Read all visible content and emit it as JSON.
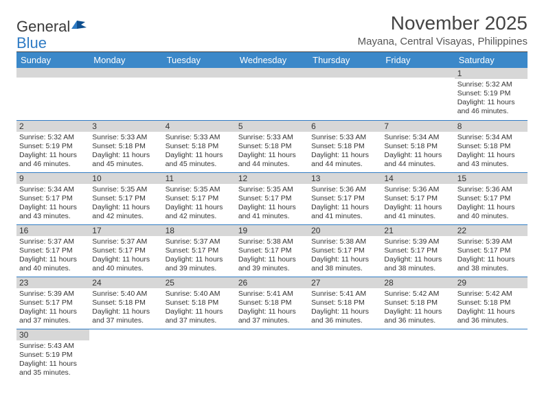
{
  "logo": {
    "text_general": "General",
    "text_blue": "Blue"
  },
  "title": "November 2025",
  "location": "Mayana, Central Visayas, Philippines",
  "colors": {
    "header_bg": "#3b88c9",
    "daybar_bg": "#d7d7d7",
    "rule": "#2f7bc4"
  },
  "day_headers": [
    "Sunday",
    "Monday",
    "Tuesday",
    "Wednesday",
    "Thursday",
    "Friday",
    "Saturday"
  ],
  "weeks": [
    [
      null,
      null,
      null,
      null,
      null,
      null,
      {
        "n": "1",
        "r": "5:32 AM",
        "s": "5:19 PM",
        "d": "11 hours and 46 minutes."
      }
    ],
    [
      {
        "n": "2",
        "r": "5:32 AM",
        "s": "5:19 PM",
        "d": "11 hours and 46 minutes."
      },
      {
        "n": "3",
        "r": "5:33 AM",
        "s": "5:18 PM",
        "d": "11 hours and 45 minutes."
      },
      {
        "n": "4",
        "r": "5:33 AM",
        "s": "5:18 PM",
        "d": "11 hours and 45 minutes."
      },
      {
        "n": "5",
        "r": "5:33 AM",
        "s": "5:18 PM",
        "d": "11 hours and 44 minutes."
      },
      {
        "n": "6",
        "r": "5:33 AM",
        "s": "5:18 PM",
        "d": "11 hours and 44 minutes."
      },
      {
        "n": "7",
        "r": "5:34 AM",
        "s": "5:18 PM",
        "d": "11 hours and 44 minutes."
      },
      {
        "n": "8",
        "r": "5:34 AM",
        "s": "5:18 PM",
        "d": "11 hours and 43 minutes."
      }
    ],
    [
      {
        "n": "9",
        "r": "5:34 AM",
        "s": "5:17 PM",
        "d": "11 hours and 43 minutes."
      },
      {
        "n": "10",
        "r": "5:35 AM",
        "s": "5:17 PM",
        "d": "11 hours and 42 minutes."
      },
      {
        "n": "11",
        "r": "5:35 AM",
        "s": "5:17 PM",
        "d": "11 hours and 42 minutes."
      },
      {
        "n": "12",
        "r": "5:35 AM",
        "s": "5:17 PM",
        "d": "11 hours and 41 minutes."
      },
      {
        "n": "13",
        "r": "5:36 AM",
        "s": "5:17 PM",
        "d": "11 hours and 41 minutes."
      },
      {
        "n": "14",
        "r": "5:36 AM",
        "s": "5:17 PM",
        "d": "11 hours and 41 minutes."
      },
      {
        "n": "15",
        "r": "5:36 AM",
        "s": "5:17 PM",
        "d": "11 hours and 40 minutes."
      }
    ],
    [
      {
        "n": "16",
        "r": "5:37 AM",
        "s": "5:17 PM",
        "d": "11 hours and 40 minutes."
      },
      {
        "n": "17",
        "r": "5:37 AM",
        "s": "5:17 PM",
        "d": "11 hours and 40 minutes."
      },
      {
        "n": "18",
        "r": "5:37 AM",
        "s": "5:17 PM",
        "d": "11 hours and 39 minutes."
      },
      {
        "n": "19",
        "r": "5:38 AM",
        "s": "5:17 PM",
        "d": "11 hours and 39 minutes."
      },
      {
        "n": "20",
        "r": "5:38 AM",
        "s": "5:17 PM",
        "d": "11 hours and 38 minutes."
      },
      {
        "n": "21",
        "r": "5:39 AM",
        "s": "5:17 PM",
        "d": "11 hours and 38 minutes."
      },
      {
        "n": "22",
        "r": "5:39 AM",
        "s": "5:17 PM",
        "d": "11 hours and 38 minutes."
      }
    ],
    [
      {
        "n": "23",
        "r": "5:39 AM",
        "s": "5:17 PM",
        "d": "11 hours and 37 minutes."
      },
      {
        "n": "24",
        "r": "5:40 AM",
        "s": "5:18 PM",
        "d": "11 hours and 37 minutes."
      },
      {
        "n": "25",
        "r": "5:40 AM",
        "s": "5:18 PM",
        "d": "11 hours and 37 minutes."
      },
      {
        "n": "26",
        "r": "5:41 AM",
        "s": "5:18 PM",
        "d": "11 hours and 37 minutes."
      },
      {
        "n": "27",
        "r": "5:41 AM",
        "s": "5:18 PM",
        "d": "11 hours and 36 minutes."
      },
      {
        "n": "28",
        "r": "5:42 AM",
        "s": "5:18 PM",
        "d": "11 hours and 36 minutes."
      },
      {
        "n": "29",
        "r": "5:42 AM",
        "s": "5:18 PM",
        "d": "11 hours and 36 minutes."
      }
    ],
    [
      {
        "n": "30",
        "r": "5:43 AM",
        "s": "5:19 PM",
        "d": "11 hours and 35 minutes."
      },
      null,
      null,
      null,
      null,
      null,
      null
    ]
  ],
  "labels": {
    "sunrise": "Sunrise: ",
    "sunset": "Sunset: ",
    "daylight": "Daylight: "
  }
}
